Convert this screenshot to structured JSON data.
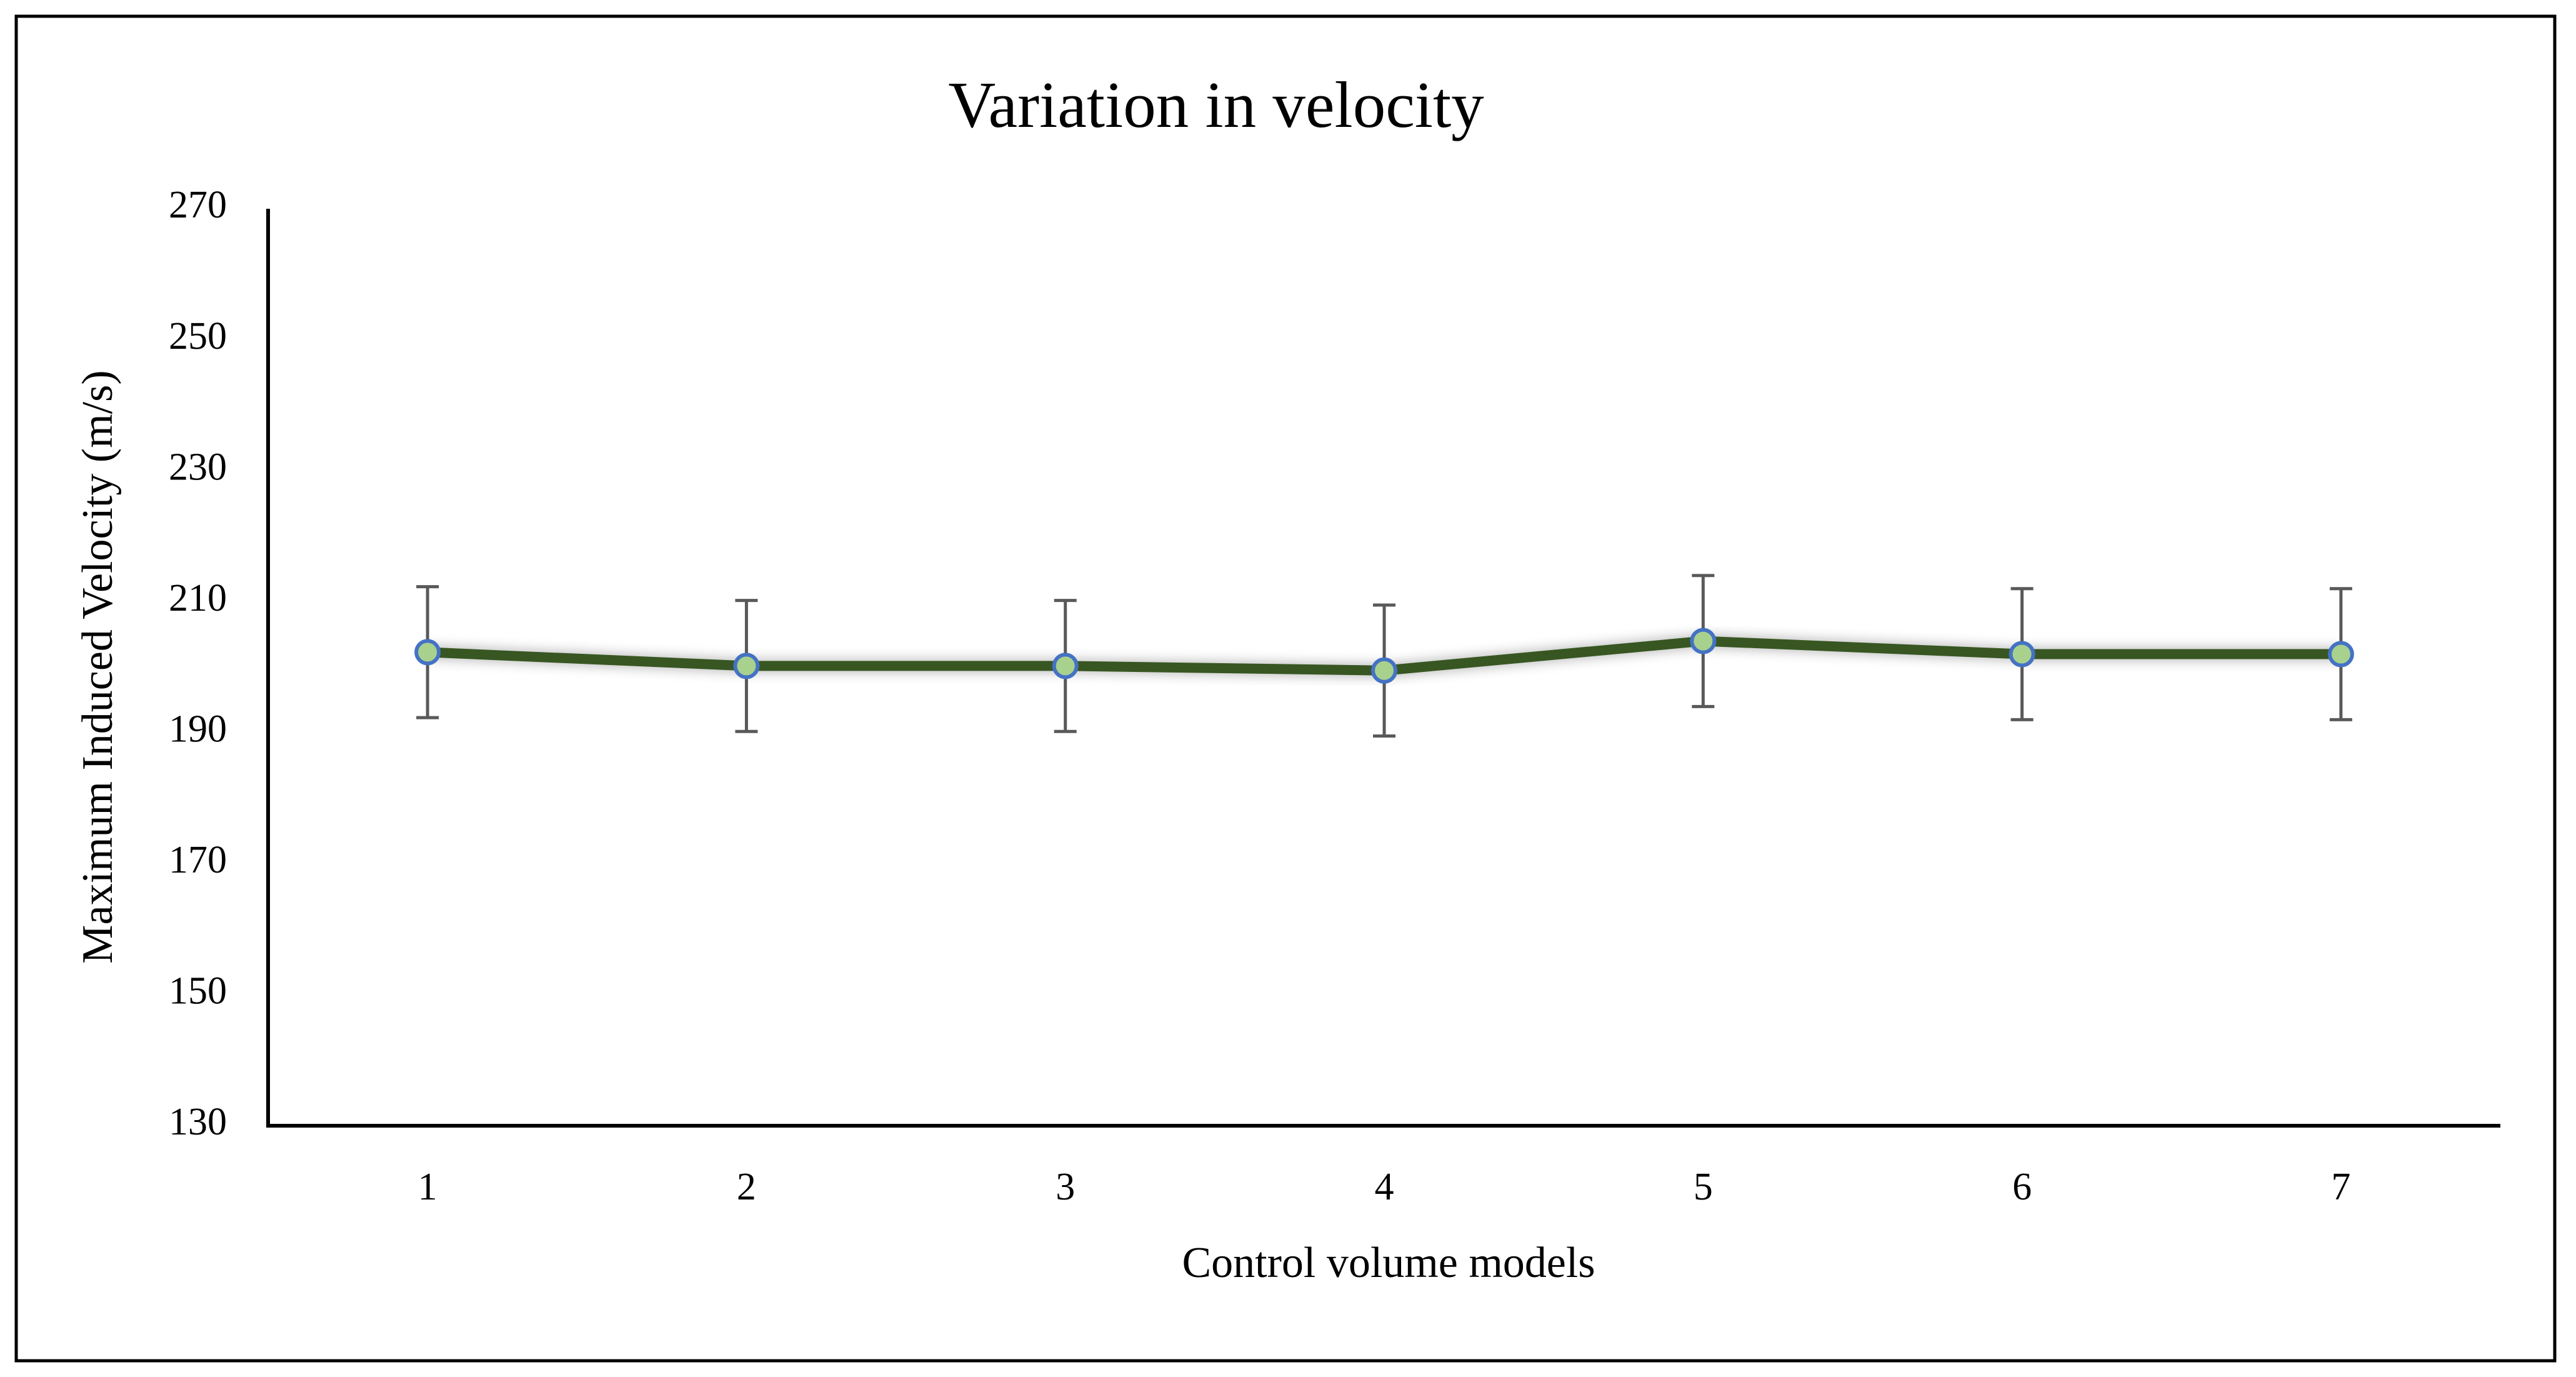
{
  "chart_data": {
    "type": "line",
    "title": "Variation in velocity",
    "x_label": "Control volume models",
    "y_label": "Maximum Induced Velocity (m/s)",
    "categories": [
      "1",
      "2",
      "3",
      "4",
      "5",
      "6",
      "7"
    ],
    "values": [
      202.3,
      200.2,
      200.2,
      199.5,
      204,
      202,
      202
    ],
    "errors": [
      10,
      10,
      10,
      10,
      10,
      10,
      10
    ],
    "color": "#375623",
    "marker_fill": "#a9d18e",
    "marker_edge": "#4472c4",
    "error_color": "#595959",
    "ylim": [
      130,
      270
    ],
    "yticks": [
      130,
      150,
      170,
      190,
      210,
      230,
      250,
      270
    ],
    "grid": false
  }
}
